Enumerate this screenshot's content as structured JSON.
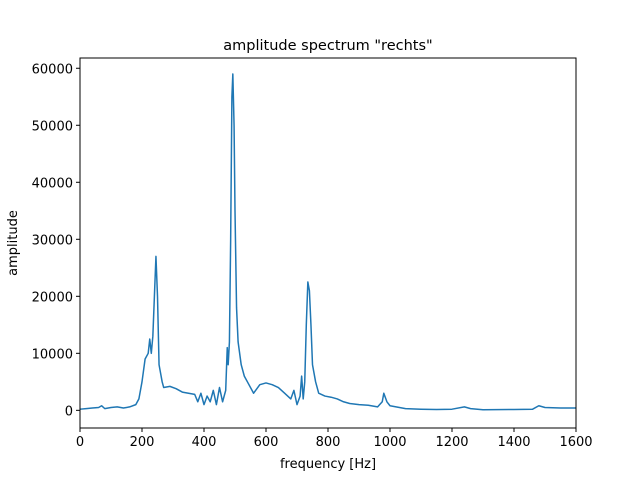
{
  "chart_data": {
    "type": "line",
    "title": "amplitude spectrum \"rechts\"",
    "x_label": "frequency [Hz]",
    "y_label": "amplitude",
    "xlim": [
      0,
      1600
    ],
    "ylim": [
      -3100,
      61800
    ],
    "xticks": [
      0,
      200,
      400,
      600,
      800,
      1000,
      1200,
      1400,
      1600
    ],
    "yticks": [
      0,
      10000,
      20000,
      30000,
      40000,
      50000,
      60000
    ],
    "series": [
      {
        "name": "rechts",
        "color": "#1f77b4",
        "x": [
          0,
          20,
          40,
          60,
          70,
          80,
          100,
          120,
          140,
          160,
          180,
          190,
          195,
          200,
          210,
          220,
          225,
          230,
          235,
          240,
          245,
          250,
          255,
          260,
          265,
          270,
          290,
          310,
          330,
          350,
          370,
          380,
          390,
          400,
          410,
          420,
          430,
          440,
          450,
          460,
          470,
          475,
          478,
          482,
          486,
          490,
          493,
          497,
          500,
          505,
          510,
          520,
          530,
          540,
          560,
          580,
          600,
          620,
          640,
          660,
          680,
          690,
          700,
          710,
          715,
          720,
          725,
          730,
          735,
          740,
          745,
          750,
          760,
          770,
          790,
          810,
          830,
          850,
          870,
          900,
          930,
          960,
          975,
          980,
          990,
          1000,
          1050,
          1100,
          1150,
          1200,
          1240,
          1260,
          1300,
          1400,
          1460,
          1480,
          1500,
          1550,
          1600
        ],
        "values": [
          200,
          300,
          400,
          500,
          800,
          300,
          500,
          600,
          400,
          600,
          1000,
          2000,
          3500,
          5000,
          9000,
          10000,
          12500,
          10000,
          13000,
          20000,
          27000,
          20000,
          8000,
          6500,
          5000,
          4000,
          4200,
          3800,
          3200,
          3000,
          2800,
          1500,
          3000,
          1000,
          2500,
          1500,
          3500,
          1000,
          4000,
          1500,
          3500,
          11000,
          8000,
          12000,
          30000,
          55000,
          59000,
          50000,
          35000,
          18000,
          12000,
          8000,
          6000,
          5000,
          3000,
          4500,
          4800,
          4500,
          4000,
          3000,
          2000,
          3500,
          1000,
          2500,
          6000,
          2000,
          5000,
          15000,
          22500,
          21000,
          15000,
          8000,
          5000,
          3000,
          2500,
          2300,
          2000,
          1500,
          1200,
          1000,
          900,
          600,
          1500,
          3000,
          1500,
          800,
          300,
          200,
          150,
          200,
          600,
          300,
          100,
          150,
          200,
          800,
          500,
          400,
          400
        ]
      }
    ]
  }
}
